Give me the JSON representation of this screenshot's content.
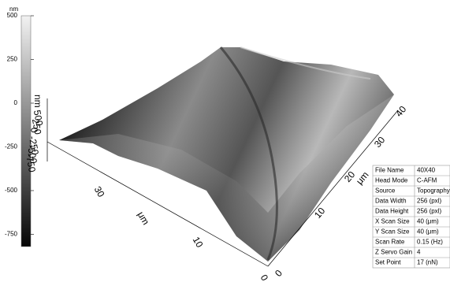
{
  "colorbar": {
    "unit": "nm",
    "range": [
      -820,
      500
    ],
    "ticks": [
      500,
      250,
      0,
      -250,
      -500,
      -750
    ]
  },
  "z_axis": {
    "unit": "nm",
    "ticks": [
      "500",
      "250",
      "0",
      "-250",
      "-500",
      "-750"
    ]
  },
  "x_axis": {
    "unit": "μm",
    "ticks": [
      "0",
      "10",
      "30"
    ]
  },
  "y_axis": {
    "unit": "μm",
    "ticks": [
      "0",
      "10",
      "20",
      "30",
      "40"
    ]
  },
  "info_table": {
    "rows": [
      [
        "File Name",
        "40X40"
      ],
      [
        "Head Mode",
        "C-AFM"
      ],
      [
        "Source",
        "Topography"
      ],
      [
        "Data Width",
        "256 (pxl)"
      ],
      [
        "Data Height",
        "256 (pxl)"
      ],
      [
        "X Scan Size",
        "40 (μm)"
      ],
      [
        "Y Scan Size",
        "40 (μm)"
      ],
      [
        "Scan Rate",
        "0.15 (Hz)"
      ],
      [
        "Z Servo Gain",
        "4"
      ],
      [
        "Set Point",
        "17 (nN)"
      ]
    ]
  }
}
